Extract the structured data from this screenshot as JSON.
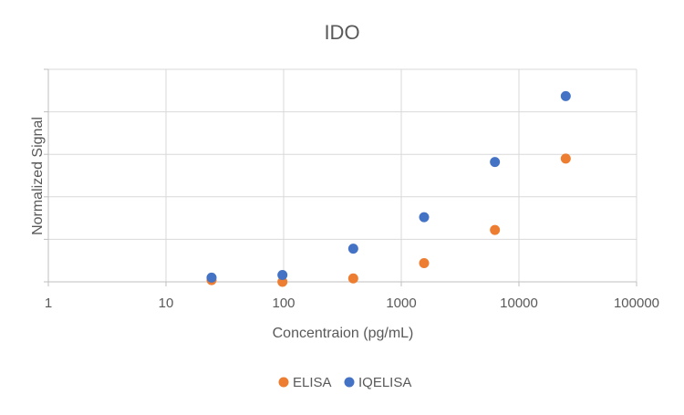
{
  "chart_data": {
    "type": "scatter",
    "title": "IDO",
    "xlabel": "Concentraion (pg/mL)",
    "ylabel": "Normalized Signal",
    "x_scale": "log",
    "xlim": [
      1,
      100000
    ],
    "x_ticks": [
      1,
      10,
      100,
      1000,
      10000,
      100000
    ],
    "x_tick_labels": [
      "1",
      "10",
      "100",
      "1000",
      "10000",
      "100000"
    ],
    "ylim": [
      0,
      5
    ],
    "y_gridlines": [
      0,
      1,
      2,
      3,
      4,
      5
    ],
    "y_tick_labels_shown": false,
    "grid": true,
    "legend_position": "bottom",
    "series": [
      {
        "name": "ELISA",
        "color": "#ED7D31",
        "points": [
          {
            "x": 24.4,
            "y": 0.04
          },
          {
            "x": 97.7,
            "y": 0.0
          },
          {
            "x": 390.6,
            "y": 0.08
          },
          {
            "x": 1562.5,
            "y": 0.44
          },
          {
            "x": 6250,
            "y": 1.22
          },
          {
            "x": 25000,
            "y": 2.9
          }
        ]
      },
      {
        "name": "IQELISA",
        "color": "#4472C4",
        "points": [
          {
            "x": 24.4,
            "y": 0.1
          },
          {
            "x": 97.7,
            "y": 0.16
          },
          {
            "x": 390.6,
            "y": 0.78
          },
          {
            "x": 1562.5,
            "y": 1.52
          },
          {
            "x": 6250,
            "y": 2.82
          },
          {
            "x": 25000,
            "y": 4.37
          }
        ]
      }
    ]
  }
}
